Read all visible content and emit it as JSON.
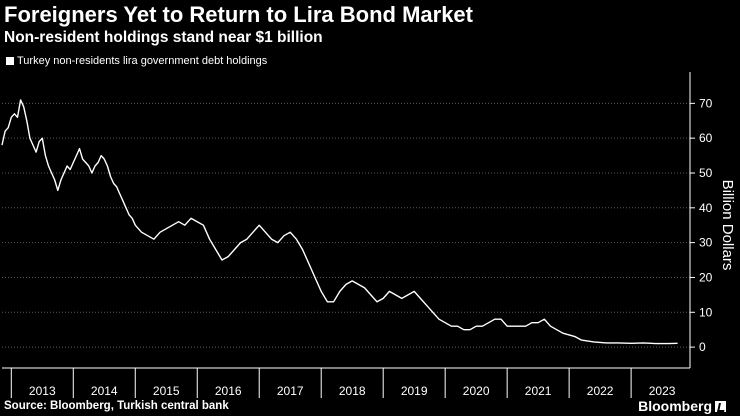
{
  "header": {
    "title": "Foreigners Yet to Return to Lira Bond Market",
    "subtitle": "Non-resident holdings stand near $1 billion"
  },
  "footer": {
    "source": "Source: Bloomberg, Turkish central bank",
    "brand": "Bloomberg"
  },
  "colors": {
    "background": "#000000",
    "line": "#ffffff",
    "grid": "#5a5a5a",
    "text": "#ffffff"
  },
  "chart_data": {
    "type": "line",
    "title": "Foreigners Yet to Return to Lira Bond Market",
    "subtitle": "Non-resident holdings stand near $1 billion",
    "ylabel": "Billion Dollars",
    "xlabel": "",
    "ylim": [
      -6,
      79
    ],
    "yticks": [
      0,
      10,
      20,
      30,
      40,
      50,
      60,
      70
    ],
    "xlim": [
      2012.85,
      2023.95
    ],
    "xticks": [
      2013,
      2014,
      2015,
      2016,
      2017,
      2018,
      2019,
      2020,
      2021,
      2022,
      2023
    ],
    "grid": "horizontal-dotted",
    "legend_position": "top-left",
    "series": [
      {
        "name": "Turkey non-residents lira government debt holdings",
        "x": [
          2012.85,
          2012.9,
          2012.95,
          2013.0,
          2013.05,
          2013.1,
          2013.15,
          2013.2,
          2013.25,
          2013.3,
          2013.35,
          2013.4,
          2013.45,
          2013.5,
          2013.55,
          2013.6,
          2013.65,
          2013.7,
          2013.75,
          2013.8,
          2013.85,
          2013.9,
          2013.95,
          2014.0,
          2014.05,
          2014.1,
          2014.15,
          2014.2,
          2014.25,
          2014.3,
          2014.35,
          2014.4,
          2014.45,
          2014.5,
          2014.55,
          2014.6,
          2014.65,
          2014.7,
          2014.75,
          2014.8,
          2014.85,
          2014.9,
          2014.95,
          2015.0,
          2015.1,
          2015.2,
          2015.3,
          2015.4,
          2015.5,
          2015.6,
          2015.7,
          2015.8,
          2015.9,
          2016.0,
          2016.1,
          2016.2,
          2016.3,
          2016.4,
          2016.5,
          2016.6,
          2016.7,
          2016.8,
          2016.9,
          2017.0,
          2017.1,
          2017.2,
          2017.3,
          2017.4,
          2017.5,
          2017.6,
          2017.7,
          2017.8,
          2017.9,
          2018.0,
          2018.1,
          2018.2,
          2018.3,
          2018.4,
          2018.5,
          2018.6,
          2018.7,
          2018.8,
          2018.9,
          2019.0,
          2019.1,
          2019.2,
          2019.3,
          2019.4,
          2019.5,
          2019.6,
          2019.7,
          2019.8,
          2019.9,
          2020.0,
          2020.1,
          2020.2,
          2020.3,
          2020.4,
          2020.5,
          2020.6,
          2020.7,
          2020.8,
          2020.9,
          2021.0,
          2021.1,
          2021.2,
          2021.3,
          2021.4,
          2021.5,
          2021.6,
          2021.7,
          2021.8,
          2021.9,
          2022.0,
          2022.1,
          2022.2,
          2022.4,
          2022.6,
          2022.8,
          2023.0,
          2023.2,
          2023.4,
          2023.6,
          2023.75
        ],
        "y": [
          58,
          62,
          63,
          66,
          67,
          66,
          71,
          69,
          65,
          60,
          58,
          56,
          59,
          60,
          55,
          52,
          50,
          48,
          45,
          48,
          50,
          52,
          51,
          53,
          55,
          57,
          54,
          53,
          52,
          50,
          52,
          53,
          55,
          54,
          52,
          49,
          47,
          46,
          44,
          42,
          40,
          38,
          37,
          35,
          33,
          32,
          31,
          33,
          34,
          35,
          36,
          35,
          37,
          36,
          35,
          31,
          28,
          25,
          26,
          28,
          30,
          31,
          33,
          35,
          33,
          31,
          30,
          32,
          33,
          31,
          28,
          24,
          20,
          16,
          13,
          13,
          16,
          18,
          19,
          18,
          17,
          15,
          13,
          14,
          16,
          15,
          14,
          15,
          16,
          14,
          12,
          10,
          8,
          7,
          6,
          6,
          5,
          5,
          6,
          6,
          7,
          8,
          8,
          6,
          6,
          6,
          6,
          7,
          7,
          8,
          6,
          5,
          4,
          3.5,
          3,
          2,
          1.5,
          1.2,
          1.2,
          1.1,
          1.2,
          1.0,
          1.0,
          1.1
        ]
      }
    ]
  }
}
